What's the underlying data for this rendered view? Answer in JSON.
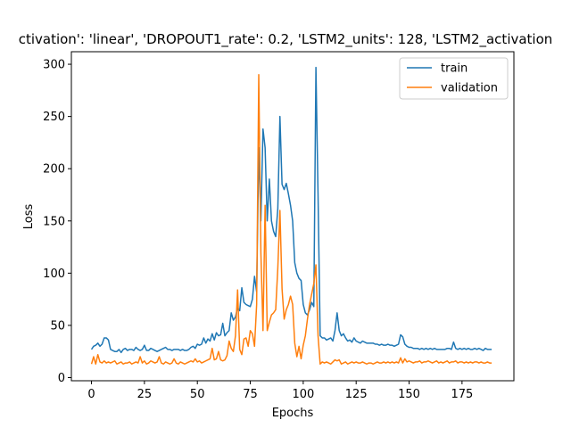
{
  "chart_data": {
    "type": "line",
    "title": "ctivation': 'linear', 'DROPOUT1_rate': 0.2, 'LSTM2_units': 128, 'LSTM2_activation",
    "xlabel": "Epochs",
    "ylabel": "Loss",
    "xlim": [
      -9.5,
      199.5
    ],
    "ylim": [
      -3,
      312
    ],
    "xticks": [
      0,
      25,
      50,
      75,
      100,
      125,
      150,
      175
    ],
    "yticks": [
      0,
      50,
      100,
      150,
      200,
      250,
      300
    ],
    "legend": "top-right",
    "grid": false,
    "series": [
      {
        "name": "train",
        "color": "#1f77b4",
        "values": [
          27,
          30,
          31,
          33,
          30,
          32,
          38,
          38,
          36,
          27,
          26,
          25,
          25,
          27,
          24,
          27,
          28,
          26,
          27,
          27,
          26,
          29,
          27,
          26,
          27,
          31,
          26,
          26,
          28,
          27,
          26,
          25,
          26,
          27,
          28,
          29,
          27,
          27,
          26,
          27,
          27,
          27,
          26,
          27,
          26,
          26,
          27,
          29,
          30,
          28,
          32,
          31,
          32,
          38,
          33,
          37,
          35,
          42,
          36,
          43,
          40,
          41,
          52,
          40,
          43,
          45,
          62,
          55,
          58,
          67,
          64,
          86,
          72,
          70,
          69,
          68,
          75,
          97,
          82,
          220,
          150,
          238,
          220,
          150,
          190,
          150,
          140,
          135,
          162,
          250,
          185,
          180,
          186,
          176,
          165,
          150,
          110,
          100,
          95,
          93,
          70,
          62,
          60,
          65,
          72,
          68,
          297,
          175,
          40,
          38,
          38,
          36,
          37,
          38,
          35,
          45,
          62,
          45,
          40,
          42,
          38,
          35,
          36,
          34,
          38,
          35,
          34,
          33,
          35,
          34,
          33,
          33,
          33,
          33,
          32,
          32,
          31,
          32,
          31,
          31,
          32,
          31,
          31,
          30,
          31,
          32,
          41,
          39,
          32,
          30,
          29,
          29,
          28,
          28,
          28,
          27,
          28,
          27,
          28,
          27,
          28,
          27,
          28,
          27,
          27,
          27,
          27,
          27,
          28,
          28,
          27,
          34,
          28,
          27,
          28,
          27,
          28,
          27,
          28,
          27,
          27,
          28,
          27,
          28,
          27,
          26,
          28,
          27,
          27,
          27
        ]
      },
      {
        "name": "validation",
        "color": "#ff7f0e",
        "values": [
          13,
          20,
          13,
          22,
          15,
          14,
          16,
          14,
          15,
          14,
          15,
          16,
          13,
          14,
          15,
          13,
          14,
          14,
          15,
          13,
          14,
          15,
          14,
          20,
          14,
          16,
          13,
          14,
          16,
          15,
          14,
          15,
          20,
          14,
          13,
          15,
          14,
          13,
          14,
          18,
          14,
          13,
          15,
          14,
          13,
          14,
          15,
          16,
          15,
          18,
          15,
          16,
          14,
          15,
          16,
          17,
          18,
          28,
          17,
          18,
          25,
          17,
          16,
          17,
          21,
          35,
          28,
          25,
          40,
          84,
          27,
          22,
          37,
          38,
          30,
          45,
          42,
          30,
          70,
          290,
          120,
          45,
          165,
          45,
          53,
          60,
          62,
          65,
          105,
          160,
          85,
          56,
          65,
          70,
          78,
          70,
          33,
          20,
          30,
          18,
          31,
          40,
          56,
          70,
          80,
          90,
          108,
          40,
          13,
          15,
          14,
          15,
          14,
          13,
          15,
          17,
          16,
          17,
          13,
          14,
          15,
          13,
          14,
          15,
          14,
          15,
          14,
          14,
          15,
          14,
          13,
          14,
          14,
          13,
          14,
          15,
          14,
          14,
          15,
          14,
          15,
          14,
          15,
          14,
          15,
          14,
          19,
          14,
          18,
          15,
          16,
          15,
          14,
          15,
          15,
          16,
          14,
          15,
          15,
          16,
          15,
          14,
          15,
          16,
          14,
          15,
          14,
          15,
          16,
          14,
          15,
          15,
          16,
          14,
          15,
          15,
          14,
          15,
          14,
          15,
          14,
          15,
          15,
          14,
          15,
          14,
          14,
          15,
          14,
          14
        ]
      }
    ]
  }
}
